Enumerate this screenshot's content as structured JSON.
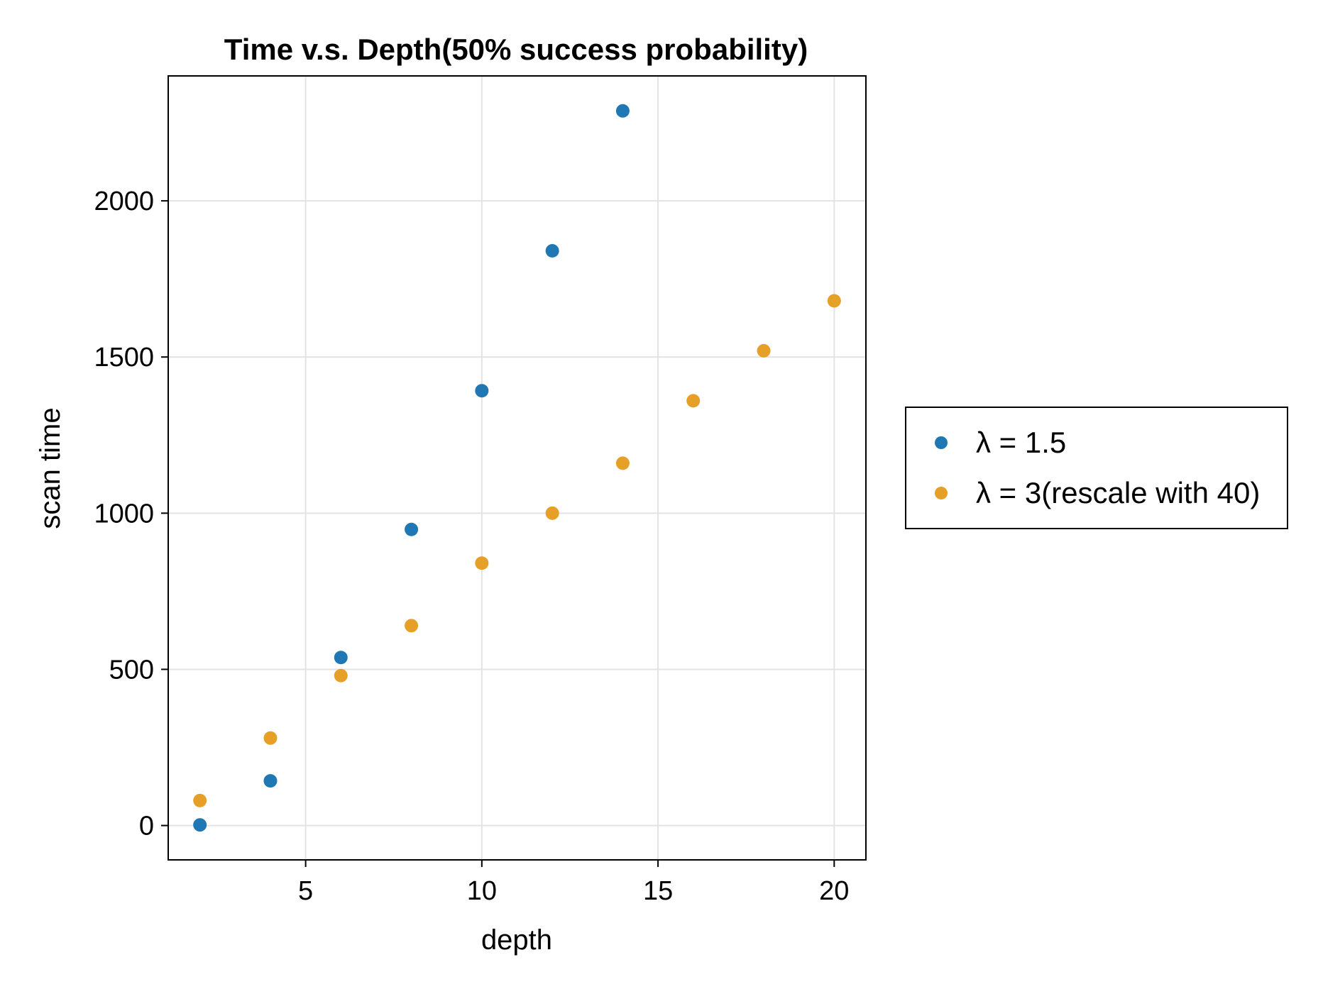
{
  "chart_data": {
    "type": "scatter",
    "title": "Time v.s. Depth(50% success probability)",
    "xlabel": "depth",
    "ylabel": "scan time",
    "xlim": [
      1.1,
      20.9
    ],
    "ylim": [
      -110,
      2400
    ],
    "xticks": [
      5,
      10,
      15,
      20
    ],
    "yticks": [
      0,
      500,
      1000,
      1500,
      2000
    ],
    "grid": true,
    "legend_position": "right",
    "series": [
      {
        "name": "λ = 1.5",
        "color": "#1f77b4",
        "x": [
          2,
          4,
          6,
          8,
          10,
          12,
          14
        ],
        "y": [
          2,
          143,
          538,
          948,
          1392,
          1840,
          2288
        ]
      },
      {
        "name": "λ = 3(rescale with 40)",
        "color": "#e69f27",
        "x": [
          2,
          4,
          6,
          8,
          10,
          12,
          14,
          16,
          18,
          20
        ],
        "y": [
          80,
          280,
          480,
          640,
          840,
          1000,
          1160,
          1360,
          1520,
          1680
        ]
      }
    ]
  }
}
